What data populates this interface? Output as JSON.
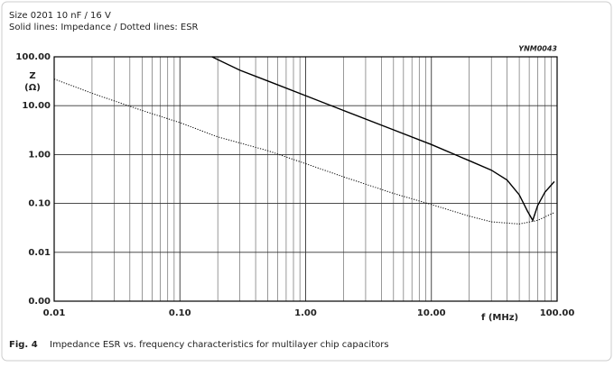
{
  "chart_data": {
    "type": "line",
    "title": "Size 0201 10 nF / 16 V",
    "subtitle": "Solid lines: Impedance / Dotted lines: ESR",
    "code": "YNM0043",
    "y_label": "Z",
    "y_unit": "(Ω)",
    "x_label": "f  (MHz)",
    "figure_number": "Fig. 4",
    "caption": "Impedance ESR vs. frequency characteristics for multilayer chip capacitors",
    "x_log": true,
    "y_log": true,
    "grid": true,
    "xlim": [
      0.01,
      100
    ],
    "ylim": [
      0.001,
      100
    ],
    "xticks": [
      {
        "value": 0.01,
        "label": "0.01"
      },
      {
        "value": 0.1,
        "label": "0.10"
      },
      {
        "value": 1,
        "label": "1.00"
      },
      {
        "value": 10,
        "label": "10.00"
      },
      {
        "value": 100,
        "label": "100.00"
      }
    ],
    "yticks": [
      {
        "value": 0.001,
        "label": "0.00"
      },
      {
        "value": 0.01,
        "label": "0.01"
      },
      {
        "value": 0.1,
        "label": "0.10"
      },
      {
        "value": 1,
        "label": "1.00"
      },
      {
        "value": 10,
        "label": "10.00"
      },
      {
        "value": 100,
        "label": "100.00"
      }
    ],
    "series": [
      {
        "color": "#000000",
        "dash": "solid",
        "x": [
          0.18,
          0.3,
          0.5,
          1,
          2,
          5,
          10,
          20,
          30,
          40,
          50,
          58,
          64,
          70,
          80,
          95
        ],
        "values": [
          100,
          53,
          32,
          16,
          8,
          3.2,
          1.6,
          0.75,
          0.48,
          0.3,
          0.15,
          0.07,
          0.045,
          0.09,
          0.17,
          0.28
        ]
      },
      {
        "color": "#000000",
        "dash": "dotted",
        "x": [
          0.01,
          0.02,
          0.05,
          0.1,
          0.2,
          0.5,
          1,
          2,
          5,
          10,
          20,
          30,
          50,
          70,
          95
        ],
        "values": [
          35,
          18,
          8,
          4.5,
          2.3,
          1.2,
          0.65,
          0.35,
          0.16,
          0.095,
          0.055,
          0.042,
          0.038,
          0.045,
          0.065
        ]
      }
    ]
  }
}
